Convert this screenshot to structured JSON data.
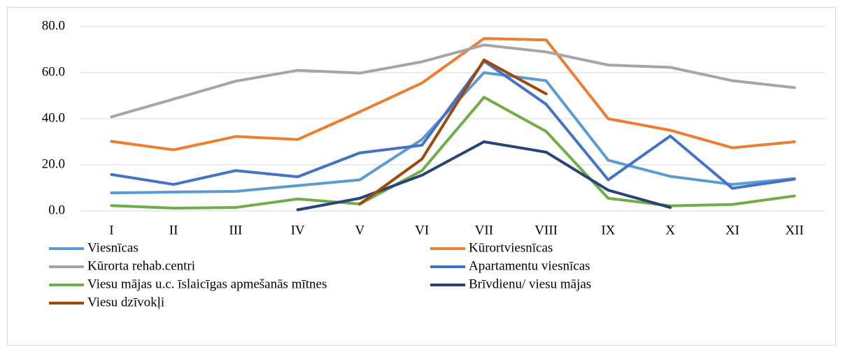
{
  "chart_data": {
    "type": "line",
    "categories": [
      "I",
      "II",
      "III",
      "IV",
      "V",
      "VI",
      "VII",
      "VIII",
      "IX",
      "X",
      "XI",
      "XII"
    ],
    "series": [
      {
        "name": "Viesnīcas",
        "color": "#5b9bd5",
        "values": [
          7.8,
          8.2,
          8.5,
          11,
          13.5,
          31,
          60,
          56.5,
          22,
          15,
          11.5,
          14
        ]
      },
      {
        "name": "Kūrortviesnīcas",
        "color": "#ed7d31",
        "values": [
          30.2,
          26.5,
          32.3,
          31,
          43,
          55.5,
          74.8,
          74.2,
          40,
          35,
          27.4,
          30
        ]
      },
      {
        "name": "Kūrorta rehab.centri",
        "color": "#a5a5a5",
        "values": [
          40.8,
          48.5,
          56.3,
          61,
          59.8,
          64.7,
          72,
          69,
          63.3,
          62.3,
          56.5,
          53.5
        ]
      },
      {
        "name": "Apartamentu viesnīcas",
        "color": "#4472c4",
        "values": [
          15.8,
          11.5,
          17.5,
          14.8,
          25.2,
          28.5,
          65,
          46.3,
          13.5,
          32.5,
          9.8,
          13.8
        ]
      },
      {
        "name": "Viesu mājas u.c. īslaicīgas apmešanās mītnes",
        "color": "#70ad47",
        "values": [
          2.3,
          1.2,
          1.5,
          5.2,
          3,
          17.5,
          49.3,
          34.5,
          5.5,
          2.2,
          2.8,
          6.5
        ]
      },
      {
        "name": "Brīvdienu/ viesu mājas",
        "color": "#264478",
        "values": [
          null,
          null,
          null,
          0.5,
          5.5,
          15.5,
          30,
          25.5,
          9,
          1.5,
          null,
          null
        ]
      },
      {
        "name": "Viesu dzīvokļi",
        "color": "#9e480e",
        "values": [
          null,
          null,
          null,
          null,
          3,
          22.5,
          65.5,
          50.8,
          null,
          null,
          null,
          null
        ]
      }
    ],
    "ylim": [
      0,
      80
    ],
    "yticks": [
      {
        "value": 0,
        "label": "0.0"
      },
      {
        "value": 20,
        "label": "20.0"
      },
      {
        "value": 40,
        "label": "40.0"
      },
      {
        "value": 60,
        "label": "60.0"
      },
      {
        "value": 80,
        "label": "80.0"
      }
    ],
    "grid": true,
    "legend": "bottom"
  }
}
